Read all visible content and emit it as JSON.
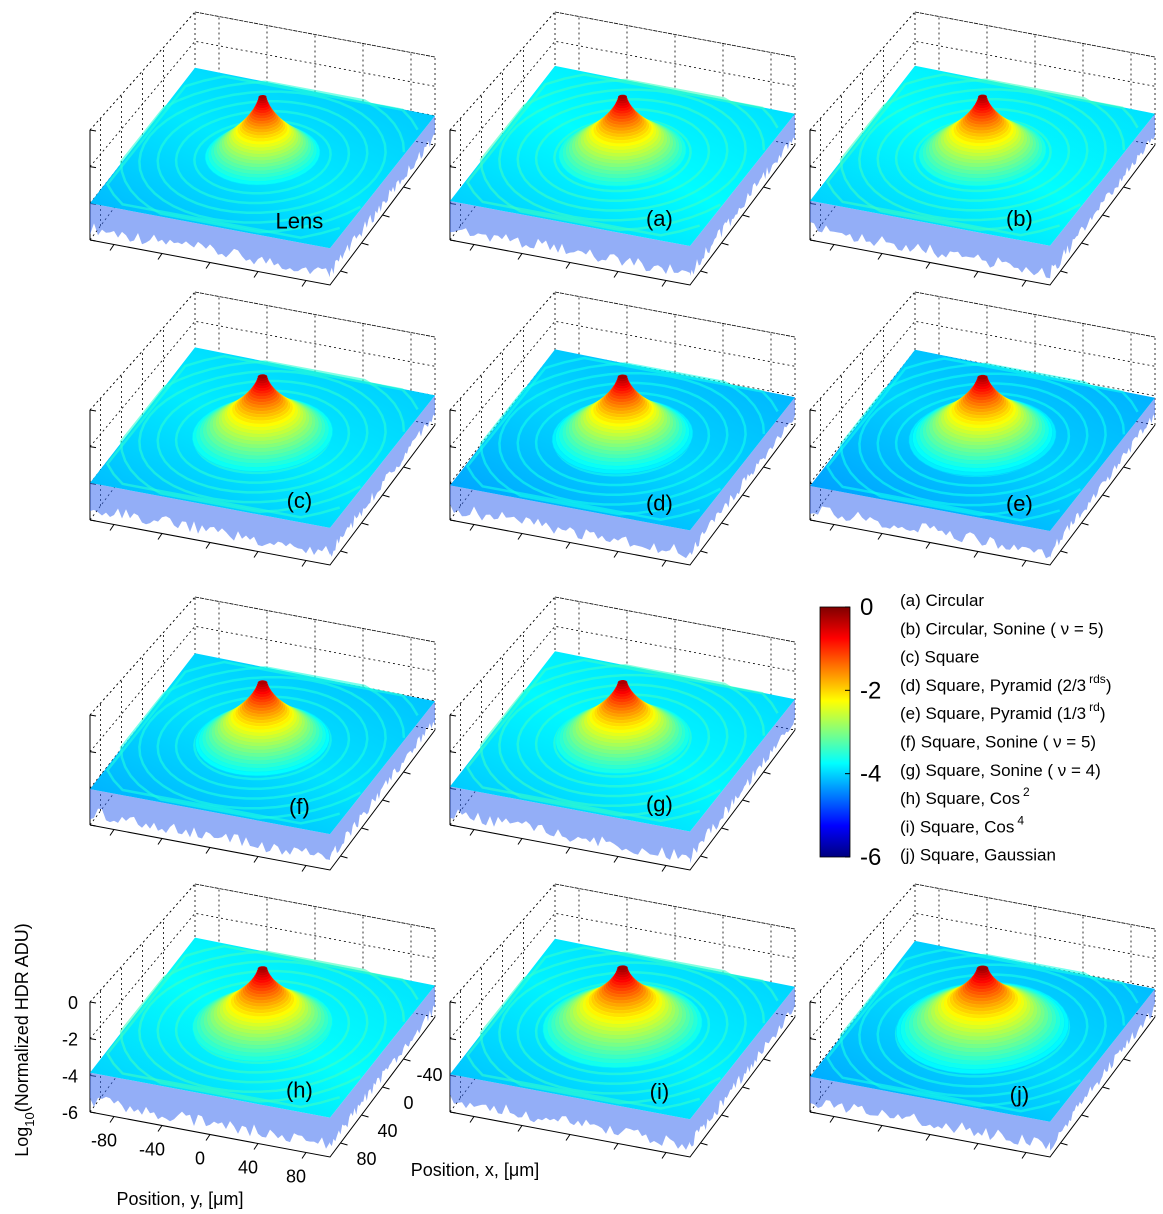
{
  "chart_data": {
    "type": "surface",
    "panels": [
      "Lens",
      "(a)",
      "(b)",
      "(c)",
      "(d)",
      "(e)",
      "(f)",
      "(g)",
      "(h)",
      "(i)",
      "(j)"
    ],
    "zlabel": {
      "base": "Log",
      "sub": "10",
      "rest": "(Normalized HDR ADU)"
    },
    "ylabel": "Position, y, [μm]",
    "xlabel": "Position, x, [μm]",
    "zlim": [
      -6,
      0
    ],
    "zticks": [
      0,
      -2,
      -4,
      -6
    ],
    "ylim": [
      -100,
      100
    ],
    "yticks": [
      -80,
      -40,
      0,
      40,
      80
    ],
    "xlim": [
      -100,
      100
    ],
    "xticks": [
      -40,
      0,
      40,
      80
    ],
    "colorbar": {
      "ticks": [
        0,
        -2,
        -4,
        -6
      ],
      "colormap": "jet"
    },
    "legend": [
      {
        "text": "(a) Circular"
      },
      {
        "text": "(b) Circular, Sonine ( ν = 5)"
      },
      {
        "text": "(c) Square"
      },
      {
        "text": "(d) Square, Pyramid (2/3",
        "sup": "rds",
        "after": ")"
      },
      {
        "text": "(e) Square, Pyramid (1/3",
        "sup": "rd",
        "after": ")"
      },
      {
        "text": "(f) Square, Sonine ( ν = 5)"
      },
      {
        "text": "(g) Square, Sonine ( ν = 4)"
      },
      {
        "text": "(h) Square, Cos",
        "sup": "2"
      },
      {
        "text": "(i) Square, Cos",
        "sup": "4"
      },
      {
        "text": "(j) Square, Gaussian"
      }
    ]
  }
}
